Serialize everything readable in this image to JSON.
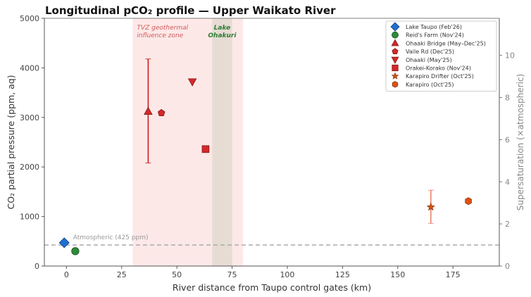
{
  "chart_data": {
    "type": "scatter",
    "title": "Longitudinal pCO₂ profile — Upper Waikato River",
    "xlabel": "River distance from Taupo control gates (km)",
    "ylabel": "CO₂ partial pressure (ppm, aq)",
    "y2label": "Supersaturation (×atmospheric)",
    "xlim": [
      -10,
      196
    ],
    "ylim": [
      0,
      5000
    ],
    "y2lim": [
      0,
      11.76
    ],
    "xticks": [
      0,
      25,
      50,
      75,
      100,
      125,
      150,
      175
    ],
    "yticks": [
      0,
      1000,
      2000,
      3000,
      4000,
      5000
    ],
    "y2ticks": [
      0,
      2,
      4,
      6,
      8,
      10
    ],
    "grid": false,
    "legend_position": "upper right",
    "reference_line": {
      "y": 425,
      "label": "Atmospheric (425 ppm)",
      "style": "dashed",
      "color": "#aaaaaa"
    },
    "shaded_regions": [
      {
        "x0": 30,
        "x1": 80,
        "label": "TVZ geothermal\ninfluence zone",
        "color": "#fde8e8",
        "label_color": "#d05a5a"
      },
      {
        "x0": 66,
        "x1": 75,
        "label": "Lake\nOhakuri",
        "color": "#e6dcd4",
        "label_color": "#2e7d32"
      }
    ],
    "series": [
      {
        "name": "Lake Taupo (Feb'26)",
        "marker": "diamond",
        "color": "#1f6fd1",
        "x": -1,
        "y": 470
      },
      {
        "name": "Reid's Farm (Nov'24)",
        "marker": "circle",
        "color": "#2e8b3a",
        "x": 4,
        "y": 300
      },
      {
        "name": "Ohaaki Bridge (May–Dec'25)",
        "marker": "triangle-up",
        "color": "#d62828",
        "x": 37,
        "y": 3120,
        "err_low": 2080,
        "err_high": 4180
      },
      {
        "name": "Vaile Rd (Dec'25)",
        "marker": "pentagon",
        "color": "#d62828",
        "x": 43,
        "y": 3090
      },
      {
        "name": "Ohaaki (May'25)",
        "marker": "triangle-down",
        "color": "#d62828",
        "x": 57,
        "y": 3720
      },
      {
        "name": "Orakei-Korako (Nov'24)",
        "marker": "square",
        "color": "#d62828",
        "x": 63,
        "y": 2360
      },
      {
        "name": "Karapiro Drifter (Oct'25)",
        "marker": "star",
        "color": "#e0520f",
        "x": 165,
        "y": 1190,
        "err_low": 860,
        "err_high": 1530
      },
      {
        "name": "Karapiro (Oct'25)",
        "marker": "hexagon",
        "color": "#e0520f",
        "x": 182,
        "y": 1310
      }
    ]
  }
}
